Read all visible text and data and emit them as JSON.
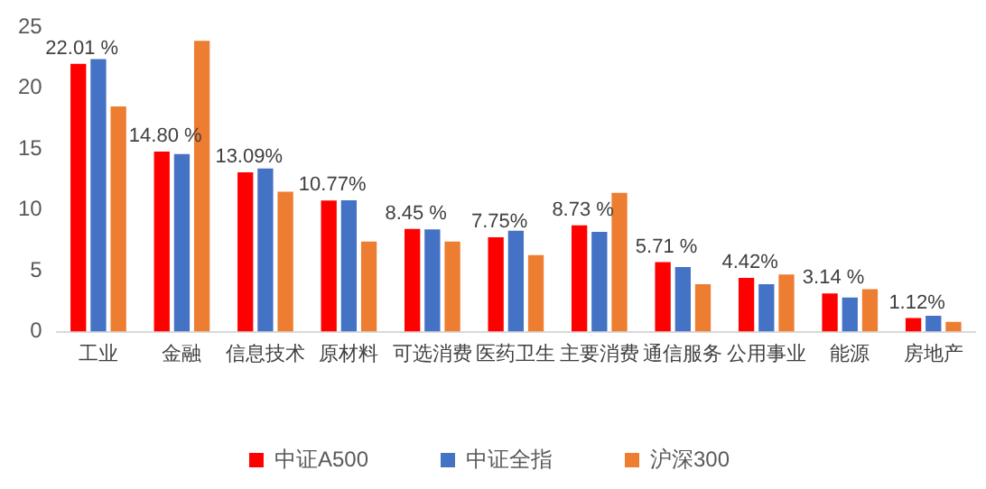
{
  "chart_data": {
    "type": "bar",
    "categories": [
      "工业",
      "金融",
      "信息技术",
      "原材料",
      "可选消费",
      "医药卫生",
      "主要消费",
      "通信服务",
      "公用事业",
      "能源",
      "房地产"
    ],
    "series": [
      {
        "name": "中证A500",
        "color": "#ff0000",
        "values": [
          22.01,
          14.8,
          13.09,
          10.77,
          8.45,
          7.75,
          8.73,
          5.71,
          4.42,
          3.14,
          1.12
        ],
        "value_labels": [
          "22.01 %",
          "14.80 %",
          "13.09%",
          "10.77%",
          "8.45 %",
          "7.75%",
          "8.73 %",
          "5.71 %",
          "4.42%",
          "3.14 %",
          "1.12%"
        ]
      },
      {
        "name": "中证全指",
        "color": "#4472c4",
        "values": [
          22.4,
          14.6,
          13.4,
          10.8,
          8.4,
          8.3,
          8.2,
          5.3,
          3.9,
          2.8,
          1.3
        ]
      },
      {
        "name": "沪深300",
        "color": "#ed7d31",
        "values": [
          18.5,
          23.9,
          11.5,
          7.4,
          7.4,
          6.3,
          11.4,
          3.9,
          4.7,
          3.5,
          0.8
        ]
      }
    ],
    "ylim": [
      0,
      25
    ],
    "yticks": [
      0,
      5,
      10,
      15,
      20,
      25
    ],
    "grid": false,
    "legend": "bottom"
  }
}
